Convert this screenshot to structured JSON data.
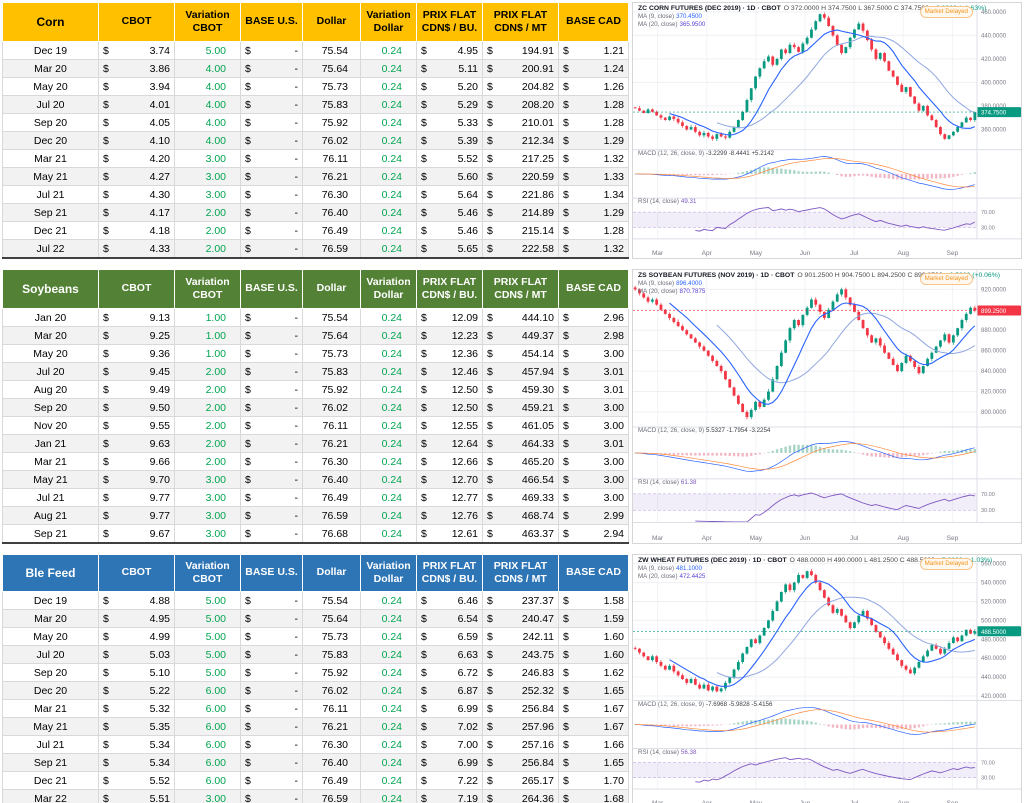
{
  "tables": [
    {
      "name": "Corn",
      "header_bg": "#FFC000",
      "header_fg": "#000000",
      "columns": [
        "Corn",
        "CBOT",
        "Variation CBOT",
        "BASE U.S.",
        "Dollar",
        "Variation Dollar",
        "PRIX FLAT CDN$ / BU.",
        "PRIX FLAT CDN$ / MT",
        "BASE CAD"
      ],
      "rows": [
        [
          "Dec 19",
          "3.74",
          "5.00",
          "-",
          "75.54",
          "0.24",
          "4.95",
          "194.91",
          "1.21"
        ],
        [
          "Mar 20",
          "3.86",
          "4.00",
          "-",
          "75.64",
          "0.24",
          "5.11",
          "200.91",
          "1.24"
        ],
        [
          "May 20",
          "3.94",
          "4.00",
          "-",
          "75.73",
          "0.24",
          "5.20",
          "204.82",
          "1.26"
        ],
        [
          "Jul 20",
          "4.01",
          "4.00",
          "-",
          "75.83",
          "0.24",
          "5.29",
          "208.20",
          "1.28"
        ],
        [
          "Sep 20",
          "4.05",
          "4.00",
          "-",
          "75.92",
          "0.24",
          "5.33",
          "210.01",
          "1.28"
        ],
        [
          "Dec 20",
          "4.10",
          "4.00",
          "-",
          "76.02",
          "0.24",
          "5.39",
          "212.34",
          "1.29"
        ],
        [
          "Mar 21",
          "4.20",
          "3.00",
          "-",
          "76.11",
          "0.24",
          "5.52",
          "217.25",
          "1.32"
        ],
        [
          "May 21",
          "4.27",
          "3.00",
          "-",
          "76.21",
          "0.24",
          "5.60",
          "220.59",
          "1.33"
        ],
        [
          "Jul 21",
          "4.30",
          "3.00",
          "-",
          "76.30",
          "0.24",
          "5.64",
          "221.86",
          "1.34"
        ],
        [
          "Sep 21",
          "4.17",
          "2.00",
          "-",
          "76.40",
          "0.24",
          "5.46",
          "214.89",
          "1.29"
        ],
        [
          "Dec 21",
          "4.18",
          "2.00",
          "-",
          "76.49",
          "0.24",
          "5.46",
          "215.14",
          "1.28"
        ],
        [
          "Jul 22",
          "4.33",
          "2.00",
          "-",
          "76.59",
          "0.24",
          "5.65",
          "222.58",
          "1.32"
        ]
      ]
    },
    {
      "name": "Soybeans",
      "header_bg": "#538135",
      "header_fg": "#FFFFFF",
      "columns": [
        "Soybeans",
        "CBOT",
        "Variation CBOT",
        "BASE U.S.",
        "Dollar",
        "Variation Dollar",
        "PRIX FLAT CDN$ / BU.",
        "PRIX FLAT CDN$ / MT",
        "BASE CAD"
      ],
      "rows": [
        [
          "Jan 20",
          "9.13",
          "1.00",
          "-",
          "75.54",
          "0.24",
          "12.09",
          "444.10",
          "2.96"
        ],
        [
          "Mar 20",
          "9.25",
          "1.00",
          "-",
          "75.64",
          "0.24",
          "12.23",
          "449.37",
          "2.98"
        ],
        [
          "May 20",
          "9.36",
          "1.00",
          "-",
          "75.73",
          "0.24",
          "12.36",
          "454.14",
          "3.00"
        ],
        [
          "Jul 20",
          "9.45",
          "2.00",
          "-",
          "75.83",
          "0.24",
          "12.46",
          "457.94",
          "3.01"
        ],
        [
          "Aug 20",
          "9.49",
          "2.00",
          "-",
          "75.92",
          "0.24",
          "12.50",
          "459.30",
          "3.01"
        ],
        [
          "Sep 20",
          "9.50",
          "2.00",
          "-",
          "76.02",
          "0.24",
          "12.50",
          "459.21",
          "3.00"
        ],
        [
          "Nov 20",
          "9.55",
          "2.00",
          "-",
          "76.11",
          "0.24",
          "12.55",
          "461.05",
          "3.00"
        ],
        [
          "Jan 21",
          "9.63",
          "2.00",
          "-",
          "76.21",
          "0.24",
          "12.64",
          "464.33",
          "3.01"
        ],
        [
          "Mar 21",
          "9.66",
          "2.00",
          "-",
          "76.30",
          "0.24",
          "12.66",
          "465.20",
          "3.00"
        ],
        [
          "May 21",
          "9.70",
          "3.00",
          "-",
          "76.40",
          "0.24",
          "12.70",
          "466.54",
          "3.00"
        ],
        [
          "Jul 21",
          "9.77",
          "3.00",
          "-",
          "76.49",
          "0.24",
          "12.77",
          "469.33",
          "3.00"
        ],
        [
          "Aug 21",
          "9.77",
          "3.00",
          "-",
          "76.59",
          "0.24",
          "12.76",
          "468.74",
          "2.99"
        ],
        [
          "Sep 21",
          "9.67",
          "3.00",
          "-",
          "76.68",
          "0.24",
          "12.61",
          "463.37",
          "2.94"
        ]
      ]
    },
    {
      "name": "Ble Feed",
      "header_bg": "#2E75B6",
      "header_fg": "#FFFFFF",
      "columns": [
        "Ble Feed",
        "CBOT",
        "Variation CBOT",
        "BASE U.S.",
        "Dollar",
        "Variation Dollar",
        "PRIX FLAT CDN$ / BU.",
        "PRIX FLAT CDN$ / MT",
        "BASE CAD"
      ],
      "rows": [
        [
          "Dec 19",
          "4.88",
          "5.00",
          "-",
          "75.54",
          "0.24",
          "6.46",
          "237.37",
          "1.58"
        ],
        [
          "Mar 20",
          "4.95",
          "5.00",
          "-",
          "75.64",
          "0.24",
          "6.54",
          "240.47",
          "1.59"
        ],
        [
          "May 20",
          "4.99",
          "5.00",
          "-",
          "75.73",
          "0.24",
          "6.59",
          "242.11",
          "1.60"
        ],
        [
          "Jul 20",
          "5.03",
          "5.00",
          "-",
          "75.83",
          "0.24",
          "6.63",
          "243.75",
          "1.60"
        ],
        [
          "Sep 20",
          "5.10",
          "5.00",
          "-",
          "75.92",
          "0.24",
          "6.72",
          "246.83",
          "1.62"
        ],
        [
          "Dec 20",
          "5.22",
          "6.00",
          "-",
          "76.02",
          "0.24",
          "6.87",
          "252.32",
          "1.65"
        ],
        [
          "Mar 21",
          "5.32",
          "6.00",
          "-",
          "76.11",
          "0.24",
          "6.99",
          "256.84",
          "1.67"
        ],
        [
          "May 21",
          "5.35",
          "6.00",
          "-",
          "76.21",
          "0.24",
          "7.02",
          "257.96",
          "1.67"
        ],
        [
          "Jul 21",
          "5.34",
          "6.00",
          "-",
          "76.30",
          "0.24",
          "7.00",
          "257.16",
          "1.66"
        ],
        [
          "Sep 21",
          "5.34",
          "6.00",
          "-",
          "76.40",
          "0.24",
          "6.99",
          "256.84",
          "1.65"
        ],
        [
          "Dec 21",
          "5.52",
          "6.00",
          "-",
          "76.49",
          "0.24",
          "7.22",
          "265.17",
          "1.70"
        ],
        [
          "Mar 22",
          "5.51",
          "3.00",
          "-",
          "76.59",
          "0.24",
          "7.19",
          "264.36",
          "1.68"
        ]
      ]
    }
  ],
  "chart_data": [
    {
      "id": "corn",
      "type": "candlestick",
      "title": "ZC CORN FUTURES (DEC 2019) · 1D · CBOT",
      "ohlc": "O 372.0000  H 374.7500  L 367.5000  C 374.7500",
      "change": "+6.0000 (+1.63%)",
      "ma1_label": "MA (9, close)",
      "ma1_value": "370.4500",
      "ma2_label": "MA (20, close)",
      "ma2_value": "365.9500",
      "macd_label": "MACD (12, 26, close, 9)",
      "macd_values": "-3.2299  -8.4441  +5.2142",
      "rsi_label": "RSI (14, close)",
      "rsi_value": "49.31",
      "badge": "Market Delayed",
      "last_price": "374.7500",
      "last_color": "#089981",
      "ylim": [
        345,
        465
      ],
      "tick_step": 20,
      "x_labels": [
        "Mar",
        "Apr",
        "May",
        "Jun",
        "Jul",
        "Aug",
        "Sep"
      ],
      "closes": [
        378,
        376,
        374,
        377,
        375,
        372,
        370,
        368,
        371,
        369,
        366,
        363,
        360,
        362,
        358,
        355,
        357,
        354,
        352,
        356,
        354,
        353,
        358,
        362,
        368,
        375,
        385,
        395,
        405,
        412,
        418,
        422,
        415,
        420,
        428,
        425,
        432,
        430,
        426,
        433,
        438,
        445,
        452,
        458,
        455,
        448,
        440,
        432,
        425,
        430,
        438,
        445,
        450,
        444,
        436,
        428,
        420,
        425,
        418,
        410,
        405,
        398,
        392,
        396,
        388,
        382,
        376,
        380,
        372,
        368,
        362,
        356,
        352,
        355,
        358,
        362,
        366,
        370,
        368,
        374.75
      ]
    },
    {
      "id": "soybeans",
      "type": "candlestick",
      "title": "ZS SOYBEAN FUTURES (NOV 2019) · 1D · CBOT",
      "ohlc": "O 901.2500  H 904.7500  L 894.2500  C 899.2500",
      "change": "+0.5000 (+0.06%)",
      "ma1_label": "MA (9, close)",
      "ma1_value": "896.4000",
      "ma2_label": "MA (20, close)",
      "ma2_value": "870.7875",
      "macd_label": "MACD (12, 26, close, 9)",
      "macd_values": "5.5327  -1.7954  -3.2254",
      "rsi_label": "RSI (14, close)",
      "rsi_value": "61.38",
      "badge": "Market Delayed",
      "last_price": "899.2500",
      "last_color": "#f23645",
      "ylim": [
        788,
        936
      ],
      "tick_step": 20,
      "x_labels": [
        "Mar",
        "Apr",
        "May",
        "Jun",
        "Jul",
        "Aug",
        "Sep"
      ],
      "closes": [
        920,
        916,
        912,
        908,
        910,
        905,
        900,
        896,
        892,
        888,
        884,
        880,
        876,
        872,
        868,
        864,
        860,
        855,
        850,
        845,
        840,
        832,
        824,
        816,
        808,
        800,
        795,
        802,
        810,
        805,
        812,
        820,
        832,
        845,
        858,
        870,
        882,
        890,
        885,
        895,
        902,
        910,
        905,
        898,
        892,
        900,
        908,
        915,
        920,
        912,
        905,
        898,
        890,
        882,
        875,
        868,
        872,
        865,
        858,
        852,
        846,
        840,
        848,
        855,
        850,
        844,
        838,
        845,
        852,
        858,
        864,
        870,
        876,
        868,
        875,
        882,
        890,
        896,
        902,
        899.25
      ]
    },
    {
      "id": "wheat",
      "type": "candlestick",
      "title": "ZW WHEAT FUTURES (DEC 2019) · 1D · CBOT",
      "ohlc": "O 488.0000  H 490.0000  L 481.2500  C 488.5000",
      "change": "+5.0000 (+1.03%)",
      "ma1_label": "MA (9, close)",
      "ma1_value": "481.1000",
      "ma2_label": "MA (20, close)",
      "ma2_value": "472.4425",
      "macd_label": "MACD (12, 26, close, 9)",
      "macd_values": "-7.6968  -5.9828  -5.4156",
      "rsi_label": "RSI (14, close)",
      "rsi_value": "56.38",
      "badge": "Market Delayed",
      "last_price": "488.5000",
      "last_color": "#089981",
      "ylim": [
        418,
        566
      ],
      "tick_step": 20,
      "x_labels": [
        "Mar",
        "Apr",
        "May",
        "Jun",
        "Jul",
        "Aug",
        "Sep"
      ],
      "closes": [
        470,
        466,
        462,
        458,
        462,
        456,
        452,
        448,
        452,
        446,
        442,
        438,
        434,
        438,
        432,
        428,
        432,
        426,
        430,
        425,
        428,
        434,
        440,
        448,
        456,
        465,
        472,
        480,
        476,
        484,
        492,
        500,
        510,
        520,
        530,
        538,
        532,
        540,
        548,
        545,
        552,
        548,
        540,
        532,
        524,
        516,
        508,
        512,
        505,
        498,
        492,
        498,
        505,
        510,
        502,
        495,
        488,
        482,
        476,
        470,
        464,
        458,
        452,
        448,
        444,
        450,
        456,
        462,
        468,
        474,
        470,
        465,
        470,
        476,
        482,
        478,
        484,
        490,
        486,
        488.5
      ]
    }
  ]
}
